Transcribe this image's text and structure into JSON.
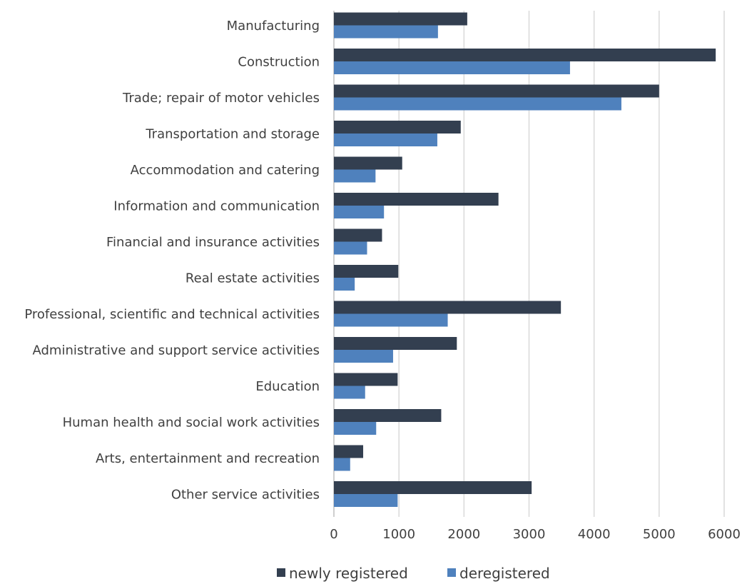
{
  "chart_data": {
    "type": "bar",
    "orientation": "horizontal",
    "categories": [
      "Manufacturing",
      "Construction",
      "Trade; repair of motor vehicles",
      "Transportation and storage",
      "Accommodation and catering",
      "Information and communication",
      "Financial and insurance activities",
      "Real estate activities",
      "Professional, scientific and technical activities",
      "Administrative and support service activities",
      "Education",
      "Human health and social work activities",
      "Arts, entertainment and recreation",
      "Other service activities"
    ],
    "series": [
      {
        "name": "newly registered",
        "color": "#333f50",
        "values": [
          2050,
          5870,
          5000,
          1950,
          1050,
          2530,
          740,
          990,
          3490,
          1890,
          980,
          1650,
          450,
          3040
        ]
      },
      {
        "name": "deregistered",
        "color": "#4f81bd",
        "values": [
          1600,
          3630,
          4420,
          1590,
          640,
          770,
          510,
          320,
          1750,
          910,
          480,
          650,
          250,
          980
        ]
      }
    ],
    "x_ticks": [
      "0",
      "1000",
      "2000",
      "3000",
      "4000",
      "5000",
      "6000"
    ],
    "xlim": [
      0,
      6000
    ],
    "grid": "vertical",
    "legend_position": "bottom"
  }
}
